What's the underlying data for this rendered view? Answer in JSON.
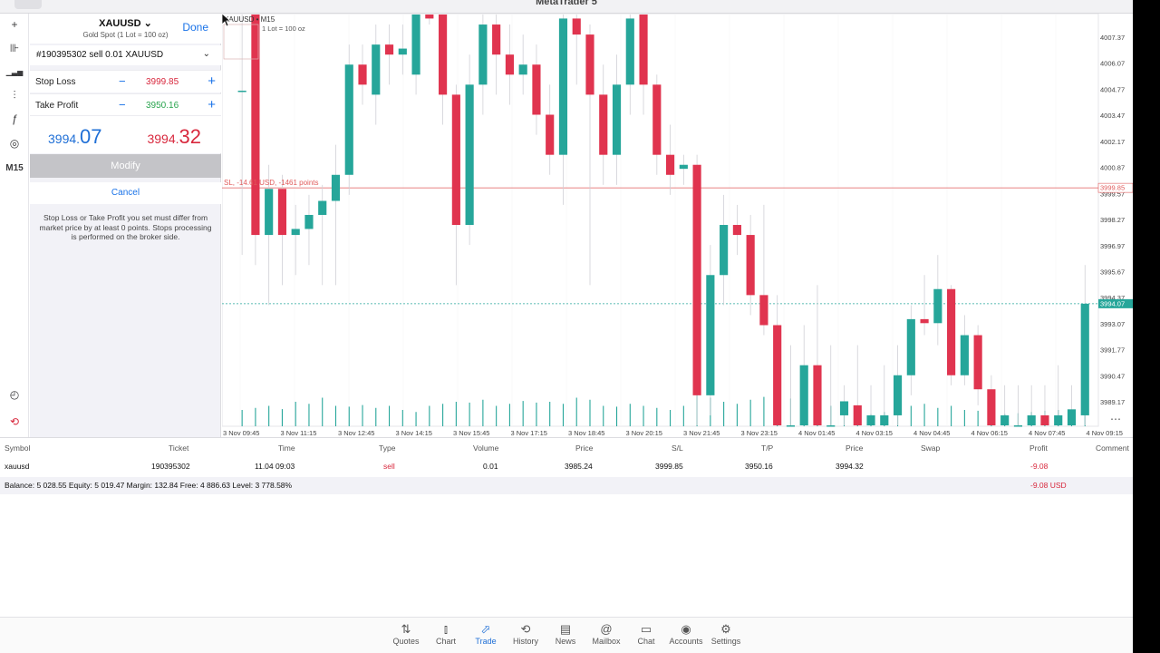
{
  "app": {
    "title": "MetaTrader 5"
  },
  "toolbar": {
    "tools": [
      {
        "name": "crosshair-icon",
        "glyph": "+"
      },
      {
        "name": "candles-icon",
        "glyph": "⊪"
      },
      {
        "name": "bar-chart-icon",
        "glyph": "▁▃▅"
      },
      {
        "name": "indicators-icon",
        "glyph": "⫶"
      },
      {
        "name": "function-icon",
        "glyph": "ƒ"
      },
      {
        "name": "objects-icon",
        "glyph": "◎"
      }
    ],
    "timeframe": "M15",
    "bottom_tools": [
      {
        "name": "chart-settings-icon",
        "glyph": "◴"
      },
      {
        "name": "trade-logo-icon",
        "glyph": "⟲"
      }
    ]
  },
  "panel": {
    "symbol": "XAUUSD",
    "chevron": "⌄",
    "description": "Gold Spot (1 Lot = 100 oz)",
    "done": "Done",
    "order": "#190395302 sell 0.01 XAUUSD",
    "order_chevron": "⌄",
    "stop_loss": {
      "label": "Stop Loss",
      "minus": "−",
      "value": "3999.85",
      "plus": "+"
    },
    "take_profit": {
      "label": "Take Profit",
      "minus": "−",
      "value": "3950.16",
      "plus": "+"
    },
    "bid": {
      "small": "3994.",
      "big": "07"
    },
    "ask": {
      "small": "3994.",
      "big": "32"
    },
    "modify": "Modify",
    "cancel": "Cancel",
    "note": "Stop Loss or Take Profit you set must differ from market price by at least 0 points. Stops processing is performed on the broker side."
  },
  "chart_data": {
    "type": "candlestick",
    "symbol_label": "XAUUSD • M15",
    "lot_label": "1 Lot = 100 oz",
    "sl_label": "SL, -14.61 USD, -1461 points",
    "sl_level": 3999.85,
    "current_price": 3994.07,
    "ylim": [
      3988.0,
      4008.5
    ],
    "y_ticks": [
      "4007.37",
      "4006.07",
      "4004.77",
      "4003.47",
      "4002.17",
      "4000.87",
      "3999.57",
      "3998.27",
      "3996.97",
      "3995.67",
      "3994.37",
      "3993.07",
      "3991.77",
      "3990.47",
      "3989.17"
    ],
    "sl_tag": "3999.85",
    "price_tag": "3994.07",
    "x_ticks": [
      "3 Nov 09:45",
      "3 Nov 11:15",
      "3 Nov 12:45",
      "3 Nov 14:15",
      "3 Nov 15:45",
      "3 Nov 17:15",
      "3 Nov 18:45",
      "3 Nov 20:15",
      "3 Nov 21:45",
      "3 Nov 23:15",
      "4 Nov 01:45",
      "4 Nov 03:15",
      "4 Nov 04:45",
      "4 Nov 06:15",
      "4 Nov 07:45",
      "4 Nov 09:15"
    ],
    "candles": [
      {
        "x": 1,
        "o": 4004.7,
        "c": 4004.7,
        "h": 4008.5,
        "l": 3996.5
      },
      {
        "x": 2,
        "o": 4008.5,
        "c": 3997.5,
        "h": 4008.5,
        "l": 3996.0
      },
      {
        "x": 3,
        "o": 3997.5,
        "c": 3999.8,
        "h": 4001.0,
        "l": 3994.0
      },
      {
        "x": 4,
        "o": 3999.8,
        "c": 3997.5,
        "h": 4000.5,
        "l": 3995.0
      },
      {
        "x": 5,
        "o": 3997.5,
        "c": 3997.8,
        "h": 3999.0,
        "l": 3995.5
      },
      {
        "x": 6,
        "o": 3997.8,
        "c": 3998.5,
        "h": 3999.5,
        "l": 3996.0
      },
      {
        "x": 7,
        "o": 3998.5,
        "c": 3999.2,
        "h": 4000.0,
        "l": 3995.0
      },
      {
        "x": 8,
        "o": 3999.2,
        "c": 4000.5,
        "h": 4002.0,
        "l": 3995.0
      },
      {
        "x": 9,
        "o": 4000.5,
        "c": 4006.0,
        "h": 4007.0,
        "l": 3999.5
      },
      {
        "x": 10,
        "o": 4006.0,
        "c": 4005.0,
        "h": 4007.0,
        "l": 4004.0
      },
      {
        "x": 11,
        "o": 4004.5,
        "c": 4007.0,
        "h": 4008.0,
        "l": 4003.0
      },
      {
        "x": 12,
        "o": 4007.0,
        "c": 4006.5,
        "h": 4008.0,
        "l": 4005.0
      },
      {
        "x": 13,
        "o": 4006.5,
        "c": 4006.8,
        "h": 4008.0,
        "l": 4005.5
      },
      {
        "x": 14,
        "o": 4005.5,
        "c": 4008.5,
        "h": 4008.5,
        "l": 4004.5
      },
      {
        "x": 15,
        "o": 4008.5,
        "c": 4008.3,
        "h": 4008.5,
        "l": 4008.0
      },
      {
        "x": 16,
        "o": 4008.5,
        "c": 4004.5,
        "h": 4008.5,
        "l": 4003.0
      },
      {
        "x": 17,
        "o": 4004.5,
        "c": 3998.0,
        "h": 4005.0,
        "l": 3995.0
      },
      {
        "x": 18,
        "o": 3998.0,
        "c": 4005.0,
        "h": 4006.5,
        "l": 3997.0
      },
      {
        "x": 19,
        "o": 4005.0,
        "c": 4008.0,
        "h": 4008.5,
        "l": 4003.5
      },
      {
        "x": 20,
        "o": 4008.0,
        "c": 4006.5,
        "h": 4008.5,
        "l": 4004.5
      },
      {
        "x": 21,
        "o": 4006.5,
        "c": 4005.5,
        "h": 4008.0,
        "l": 4004.0
      },
      {
        "x": 22,
        "o": 4005.5,
        "c": 4006.0,
        "h": 4007.5,
        "l": 4004.5
      },
      {
        "x": 23,
        "o": 4006.0,
        "c": 4003.5,
        "h": 4007.0,
        "l": 4002.5
      },
      {
        "x": 24,
        "o": 4003.5,
        "c": 4001.5,
        "h": 4005.0,
        "l": 4000.5
      },
      {
        "x": 25,
        "o": 4001.5,
        "c": 4008.3,
        "h": 4008.5,
        "l": 3999.0
      },
      {
        "x": 26,
        "o": 4008.3,
        "c": 4007.5,
        "h": 4008.5,
        "l": 4005.0
      },
      {
        "x": 27,
        "o": 4007.5,
        "c": 4004.5,
        "h": 4008.0,
        "l": 3995.0
      },
      {
        "x": 28,
        "o": 4004.5,
        "c": 4001.5,
        "h": 4006.0,
        "l": 4000.0
      },
      {
        "x": 29,
        "o": 4001.5,
        "c": 4005.0,
        "h": 4006.5,
        "l": 4000.0
      },
      {
        "x": 30,
        "o": 4005.0,
        "c": 4008.3,
        "h": 4008.5,
        "l": 4003.5
      },
      {
        "x": 31,
        "o": 4008.5,
        "c": 4005.0,
        "h": 4008.5,
        "l": 4003.5
      },
      {
        "x": 32,
        "o": 4005.0,
        "c": 4001.5,
        "h": 4005.5,
        "l": 4000.5
      },
      {
        "x": 33,
        "o": 4001.5,
        "c": 4000.5,
        "h": 4003.0,
        "l": 3999.5
      },
      {
        "x": 34,
        "o": 4000.8,
        "c": 4001.0,
        "h": 4001.5,
        "l": 4000.0
      },
      {
        "x": 35,
        "o": 4001.0,
        "c": 3989.5,
        "h": 4001.5,
        "l": 3988.0
      },
      {
        "x": 36,
        "o": 3989.5,
        "c": 3995.5,
        "h": 3997.0,
        "l": 3988.5
      },
      {
        "x": 37,
        "o": 3995.5,
        "c": 3998.0,
        "h": 3999.5,
        "l": 3994.0
      },
      {
        "x": 38,
        "o": 3998.0,
        "c": 3997.5,
        "h": 3999.0,
        "l": 3996.5
      },
      {
        "x": 39,
        "o": 3997.5,
        "c": 3994.5,
        "h": 3998.5,
        "l": 3993.5
      },
      {
        "x": 40,
        "o": 3994.5,
        "c": 3993.0,
        "h": 3999.0,
        "l": 3992.5
      },
      {
        "x": 41,
        "o": 3993.0,
        "c": 3988.0,
        "h": 3994.5,
        "l": 3988.0
      },
      {
        "x": 42,
        "o": 3988.0,
        "c": 3988.0,
        "h": 3992.0,
        "l": 3988.0
      },
      {
        "x": 43,
        "o": 3988.0,
        "c": 3991.0,
        "h": 3993.0,
        "l": 3988.0
      },
      {
        "x": 44,
        "o": 3991.0,
        "c": 3988.0,
        "h": 3995.0,
        "l": 3988.0
      },
      {
        "x": 45,
        "o": 3988.0,
        "c": 3988.0,
        "h": 3992.0,
        "l": 3988.0
      },
      {
        "x": 46,
        "o": 3988.5,
        "c": 3989.2,
        "h": 3990.0,
        "l": 3988.0
      },
      {
        "x": 47,
        "o": 3989.0,
        "c": 3988.0,
        "h": 3992.0,
        "l": 3988.0
      },
      {
        "x": 48,
        "o": 3988.0,
        "c": 3988.5,
        "h": 3990.0,
        "l": 3988.0
      },
      {
        "x": 49,
        "o": 3988.0,
        "c": 3988.5,
        "h": 3991.0,
        "l": 3988.0
      },
      {
        "x": 50,
        "o": 3988.5,
        "c": 3990.5,
        "h": 3992.0,
        "l": 3988.0
      },
      {
        "x": 51,
        "o": 3990.5,
        "c": 3993.3,
        "h": 3994.0,
        "l": 3989.5
      },
      {
        "x": 52,
        "o": 3993.3,
        "c": 3993.1,
        "h": 3995.5,
        "l": 3992.5
      },
      {
        "x": 53,
        "o": 3993.1,
        "c": 3994.8,
        "h": 3996.5,
        "l": 3992.0
      },
      {
        "x": 54,
        "o": 3994.8,
        "c": 3990.5,
        "h": 3995.0,
        "l": 3990.0
      },
      {
        "x": 55,
        "o": 3990.5,
        "c": 3992.5,
        "h": 3993.5,
        "l": 3990.0
      },
      {
        "x": 56,
        "o": 3992.5,
        "c": 3989.8,
        "h": 3993.0,
        "l": 3989.0
      },
      {
        "x": 57,
        "o": 3989.8,
        "c": 3988.0,
        "h": 3990.5,
        "l": 3988.0
      },
      {
        "x": 58,
        "o": 3988.0,
        "c": 3988.5,
        "h": 3990.0,
        "l": 3988.0
      },
      {
        "x": 59,
        "o": 3988.0,
        "c": 3988.0,
        "h": 3990.0,
        "l": 3988.0
      },
      {
        "x": 60,
        "o": 3988.0,
        "c": 3988.5,
        "h": 3990.0,
        "l": 3988.0
      },
      {
        "x": 61,
        "o": 3988.5,
        "c": 3988.0,
        "h": 3990.0,
        "l": 3988.0
      },
      {
        "x": 62,
        "o": 3988.0,
        "c": 3988.5,
        "h": 3991.0,
        "l": 3988.0
      },
      {
        "x": 63,
        "o": 3988.0,
        "c": 3988.8,
        "h": 3990.0,
        "l": 3988.0
      },
      {
        "x": 64,
        "o": 3988.5,
        "c": 3994.07,
        "h": 3996.0,
        "l": 3988.0
      }
    ],
    "volumes": [
      0.4,
      0.45,
      0.5,
      0.42,
      0.6,
      0.55,
      0.7,
      0.5,
      0.48,
      0.52,
      0.45,
      0.5,
      0.4,
      0.35,
      0.5,
      0.55,
      0.6,
      0.58,
      0.65,
      0.5,
      0.55,
      0.62,
      0.58,
      0.6,
      0.55,
      0.7,
      0.65,
      0.5,
      0.48,
      0.55,
      0.5,
      0.45,
      0.4,
      0.5,
      0.9,
      0.7,
      0.6,
      0.55,
      0.65,
      0.72,
      0.8,
      0.68,
      0.6,
      0.55,
      0.5,
      0.45,
      0.4,
      0.3,
      0.35,
      0.4,
      0.5,
      0.55,
      0.45,
      0.5,
      0.4,
      0.38,
      0.35,
      0.3,
      0.32,
      0.35,
      0.38,
      0.4,
      0.35,
      0.45
    ]
  },
  "terminal": {
    "headers": [
      "Symbol",
      "Ticket",
      "Time",
      "Type",
      "Volume",
      "Price",
      "S/L",
      "T/P",
      "Price",
      "Swap",
      "Profit",
      "Comment"
    ],
    "row": {
      "symbol": "xauusd",
      "ticket": "190395302",
      "time": "11.04 09:03",
      "type": "sell",
      "volume": "0.01",
      "price": "3985.24",
      "sl": "3999.85",
      "tp": "3950.16",
      "current": "3994.32",
      "swap": "",
      "profit": "-9.08",
      "comment": ""
    },
    "balance_line": "Balance: 5 028.55 Equity: 5 019.47 Margin: 132.84 Free: 4 886.63 Level: 3 778.58%",
    "total_profit": "-9.08  USD"
  },
  "tabs": [
    {
      "label": "Quotes",
      "icon": "quotes-icon",
      "glyph": "⇅",
      "active": false
    },
    {
      "label": "Chart",
      "icon": "chart-icon",
      "glyph": "⫾",
      "active": false
    },
    {
      "label": "Trade",
      "icon": "trade-icon",
      "glyph": "⬀",
      "active": true
    },
    {
      "label": "History",
      "icon": "history-icon",
      "glyph": "⟲",
      "active": false
    },
    {
      "label": "News",
      "icon": "news-icon",
      "glyph": "▤",
      "active": false
    },
    {
      "label": "Mailbox",
      "icon": "mailbox-icon",
      "glyph": "@",
      "active": false
    },
    {
      "label": "Chat",
      "icon": "chat-icon",
      "glyph": "▭",
      "active": false
    },
    {
      "label": "Accounts",
      "icon": "accounts-icon",
      "glyph": "◉",
      "active": false
    },
    {
      "label": "Settings",
      "icon": "settings-icon",
      "glyph": "⚙",
      "active": false
    }
  ],
  "colors": {
    "bull": "#26a69a",
    "bear": "#e0344f",
    "accent": "#1a73e8",
    "sl_line": "#e05a5a"
  }
}
